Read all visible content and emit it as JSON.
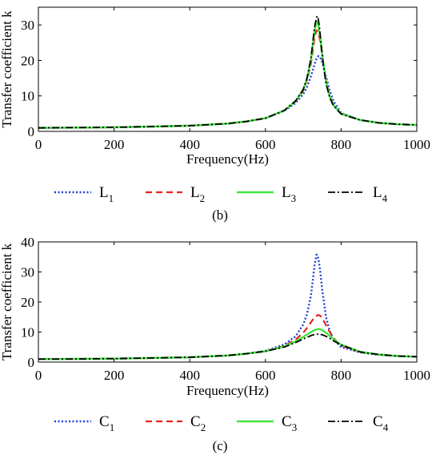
{
  "chart_data": [
    {
      "type": "line",
      "panel_label": "(b)",
      "xlabel": "Frequency(Hz)",
      "ylabel": "Transfer coefficient k",
      "xlim": [
        0,
        1000
      ],
      "ylim": [
        0,
        35
      ],
      "xticks": [
        0,
        200,
        400,
        600,
        800,
        1000
      ],
      "yticks": [
        0,
        10,
        20,
        30
      ],
      "grid": false,
      "legend_position": "bottom",
      "series": [
        {
          "name": "L",
          "sub": "1",
          "color": "#1f3fd6",
          "dash": "2,2.5",
          "width": 2.4,
          "x": [
            0,
            100,
            200,
            300,
            400,
            500,
            550,
            600,
            650,
            680,
            700,
            710,
            720,
            730,
            735,
            740,
            745,
            750,
            760,
            770,
            780,
            800,
            850,
            900,
            950,
            1000
          ],
          "y": [
            1.0,
            1.05,
            1.15,
            1.35,
            1.6,
            2.2,
            2.8,
            3.7,
            5.8,
            8.0,
            10.5,
            12.5,
            15.5,
            19.0,
            20.5,
            21.2,
            20.8,
            19.5,
            15.5,
            11.5,
            8.5,
            5.2,
            3.2,
            2.4,
            2.0,
            1.8
          ]
        },
        {
          "name": "L",
          "sub": "2",
          "color": "#e8211c",
          "dash": "8,5",
          "width": 2.2,
          "x": [
            0,
            100,
            200,
            300,
            400,
            500,
            550,
            600,
            650,
            680,
            700,
            710,
            720,
            725,
            730,
            735,
            740,
            745,
            750,
            760,
            770,
            780,
            800,
            850,
            900,
            950,
            1000
          ],
          "y": [
            1.0,
            1.05,
            1.15,
            1.35,
            1.6,
            2.2,
            2.8,
            3.7,
            5.9,
            8.5,
            11.5,
            14.5,
            19.0,
            22.5,
            26.5,
            28.5,
            28.0,
            25.0,
            21.5,
            14.5,
            10.0,
            7.5,
            5.0,
            3.2,
            2.4,
            2.0,
            1.8
          ]
        },
        {
          "name": "L",
          "sub": "3",
          "color": "#3ee63e",
          "dash": "none",
          "width": 2.4,
          "x": [
            0,
            100,
            200,
            300,
            400,
            500,
            550,
            600,
            650,
            680,
            700,
            710,
            720,
            725,
            730,
            735,
            740,
            745,
            750,
            760,
            770,
            780,
            800,
            850,
            900,
            950,
            1000
          ],
          "y": [
            1.0,
            1.05,
            1.15,
            1.35,
            1.6,
            2.2,
            2.8,
            3.7,
            5.9,
            8.6,
            11.8,
            15.0,
            20.0,
            24.0,
            28.5,
            31.0,
            30.0,
            26.0,
            21.5,
            14.0,
            9.8,
            7.4,
            5.0,
            3.2,
            2.4,
            2.0,
            1.8
          ]
        },
        {
          "name": "L",
          "sub": "4",
          "color": "#000000",
          "dash": "9,3,2,3",
          "width": 1.8,
          "x": [
            0,
            100,
            200,
            300,
            400,
            500,
            550,
            600,
            650,
            680,
            700,
            710,
            720,
            725,
            730,
            735,
            738,
            742,
            747,
            752,
            760,
            770,
            780,
            800,
            850,
            900,
            950,
            1000
          ],
          "y": [
            1.0,
            1.05,
            1.15,
            1.35,
            1.6,
            2.2,
            2.8,
            3.7,
            5.9,
            8.6,
            11.8,
            15.0,
            20.5,
            25.0,
            29.5,
            32.2,
            32.5,
            30.0,
            25.0,
            19.5,
            13.5,
            9.5,
            7.2,
            4.9,
            3.2,
            2.4,
            2.0,
            1.8
          ]
        }
      ]
    },
    {
      "type": "line",
      "panel_label": "(c)",
      "xlabel": "Frequency(Hz)",
      "ylabel": "Transfer coefficient k",
      "xlim": [
        0,
        1000
      ],
      "ylim": [
        0,
        40
      ],
      "xticks": [
        0,
        200,
        400,
        600,
        800,
        1000
      ],
      "yticks": [
        0,
        10,
        20,
        30,
        40
      ],
      "grid": false,
      "legend_position": "bottom",
      "series": [
        {
          "name": "C",
          "sub": "1",
          "color": "#1f3fd6",
          "dash": "2,2.5",
          "width": 2.4,
          "x": [
            0,
            100,
            200,
            300,
            400,
            500,
            550,
            600,
            650,
            680,
            700,
            710,
            720,
            725,
            730,
            735,
            740,
            745,
            750,
            760,
            770,
            780,
            800,
            850,
            900,
            950,
            1000
          ],
          "y": [
            1.0,
            1.05,
            1.15,
            1.35,
            1.6,
            2.2,
            2.8,
            3.7,
            5.9,
            8.6,
            12.5,
            16.0,
            22.0,
            27.0,
            32.5,
            35.8,
            34.5,
            30.0,
            24.0,
            15.0,
            10.3,
            7.6,
            5.0,
            3.2,
            2.4,
            2.0,
            1.8
          ]
        },
        {
          "name": "C",
          "sub": "2",
          "color": "#e8211c",
          "dash": "8,5",
          "width": 2.2,
          "x": [
            0,
            100,
            200,
            300,
            400,
            500,
            550,
            600,
            650,
            680,
            700,
            710,
            720,
            730,
            740,
            745,
            750,
            760,
            770,
            780,
            800,
            850,
            900,
            950,
            1000
          ],
          "y": [
            1.0,
            1.05,
            1.15,
            1.35,
            1.6,
            2.2,
            2.8,
            3.6,
            5.4,
            7.5,
            9.8,
            11.4,
            13.2,
            15.0,
            15.7,
            15.4,
            14.6,
            12.3,
            10.0,
            8.0,
            5.5,
            3.3,
            2.5,
            2.0,
            1.8
          ]
        },
        {
          "name": "C",
          "sub": "3",
          "color": "#3ee63e",
          "dash": "none",
          "width": 2.4,
          "x": [
            0,
            100,
            200,
            300,
            400,
            500,
            550,
            600,
            650,
            680,
            700,
            720,
            730,
            740,
            745,
            750,
            760,
            770,
            780,
            800,
            850,
            900,
            950,
            1000
          ],
          "y": [
            1.0,
            1.05,
            1.15,
            1.35,
            1.6,
            2.2,
            2.8,
            3.6,
            5.2,
            6.9,
            8.4,
            10.0,
            10.7,
            11.0,
            10.9,
            10.6,
            9.8,
            8.7,
            7.6,
            5.8,
            3.4,
            2.5,
            2.0,
            1.8
          ]
        },
        {
          "name": "C",
          "sub": "4",
          "color": "#000000",
          "dash": "9,3,2,3",
          "width": 1.8,
          "x": [
            0,
            100,
            200,
            300,
            400,
            500,
            550,
            600,
            650,
            680,
            700,
            720,
            730,
            740,
            750,
            760,
            770,
            780,
            800,
            850,
            900,
            950,
            1000
          ],
          "y": [
            1.0,
            1.05,
            1.15,
            1.35,
            1.6,
            2.2,
            2.8,
            3.6,
            5.0,
            6.5,
            7.7,
            8.8,
            9.2,
            9.3,
            9.1,
            8.6,
            7.9,
            7.1,
            5.7,
            3.4,
            2.5,
            2.0,
            1.8
          ]
        }
      ]
    }
  ]
}
